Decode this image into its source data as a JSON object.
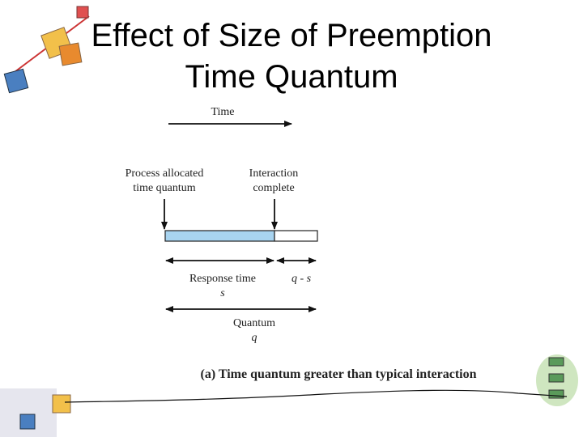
{
  "title": [
    "Effect of Size of Preemption",
    "Time Quantum"
  ],
  "diagram": {
    "time_label": "Time",
    "start_label": [
      "Process allocated",
      "time quantum"
    ],
    "end_label": [
      "Interaction",
      "complete"
    ],
    "response_label": "Response time",
    "response_symbol": "s",
    "remainder_label": "q - s",
    "quantum_label": "Quantum",
    "quantum_symbol": "q"
  },
  "caption": "(a) Time quantum greater than typical interaction"
}
